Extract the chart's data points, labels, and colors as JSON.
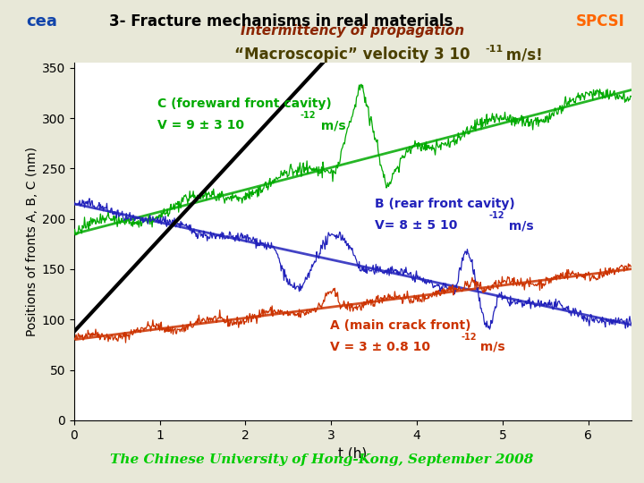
{
  "title": "3- Fracture mechanisms in real materials",
  "subtitle1": "Intermittency of propagation",
  "subtitle2_main": "\"Macroscopic\" velocity 3 10",
  "subtitle2_exp": "-11",
  "subtitle2_end": " m/s!",
  "xlabel": "t (h)",
  "ylabel": "Positions of fronts A, B, C (nm)",
  "xlim": [
    0,
    6.5
  ],
  "ylim": [
    0,
    355
  ],
  "yticks": [
    0,
    50,
    100,
    150,
    200,
    250,
    300,
    350
  ],
  "xticks": [
    0,
    1,
    2,
    3,
    4,
    5,
    6
  ],
  "bg_color": "#e8e8d8",
  "plot_bg": "#ffffff",
  "title_color": "#000000",
  "subtitle1_color": "#8B2500",
  "subtitle2_color": "#4B4000",
  "A_color": "#CC3300",
  "B_color": "#2222BB",
  "C_color": "#00AA00",
  "black_line_color": "#000000",
  "footer_color": "#00CC00",
  "footer_text": "The Chinese University of Hong-Kong, September 2008",
  "header_bar_color": "#8B0000",
  "gold_bar_color": "#C8A000",
  "cea_color": "#1144AA",
  "spcsi_color": "#FF6600"
}
